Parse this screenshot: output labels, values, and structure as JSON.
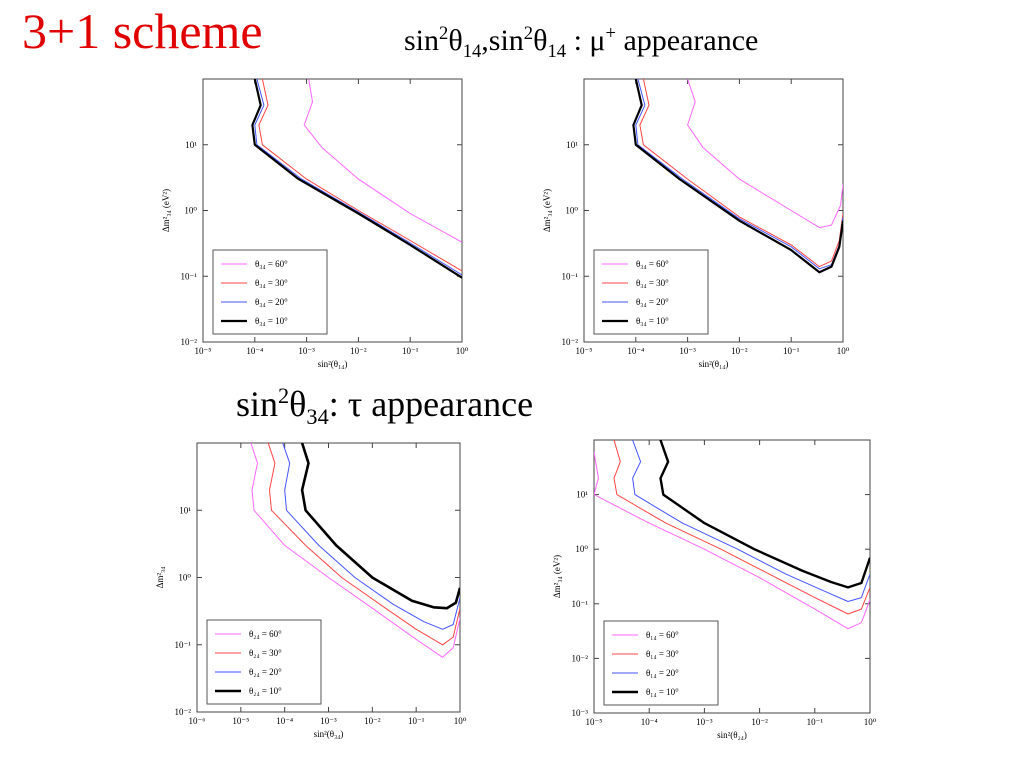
{
  "slide": {
    "title": "3+1 scheme",
    "subtitle_top": {
      "part1": "sin",
      "sup1": "2",
      "theta1": "θ",
      "sub1": "14",
      "part2": ",sin",
      "sup2": "2",
      "theta2": "θ",
      "sub2": "14",
      "part3": " : μ",
      "sup3": "+",
      "part4": " appearance"
    },
    "subtitle_mid": {
      "part1": "sin",
      "sup1": "2",
      "theta1": "θ",
      "sub1": "34",
      "part2": ": τ appearance"
    }
  },
  "colors": {
    "title": "#e00000",
    "theta_60": "#ff66ff",
    "theta_30": "#ff4444",
    "theta_20": "#4455ff",
    "theta_10": "#000000"
  },
  "chart_data": [
    {
      "type": "line",
      "xscale": "log",
      "yscale": "log",
      "xlim": [
        1e-05,
        1
      ],
      "ylim": [
        0.01,
        100
      ],
      "xlabel": "sin²(θ₁₄)",
      "ylabel": "Δm²₃₄ (eV²)",
      "xticks": [
        "10⁻⁵",
        "10⁻⁴",
        "10⁻³",
        "10⁻²",
        "10⁻¹",
        "10⁰"
      ],
      "yticks": [
        "10⁻²",
        "10⁻¹",
        "10⁰",
        "10¹"
      ],
      "legend_position": "bottom-left",
      "series": [
        {
          "name": "θ₃₄ = 60°",
          "color": "#ff66ff",
          "width": 1,
          "points": [
            [
              0.0011,
              100
            ],
            [
              0.0013,
              45
            ],
            [
              0.0009,
              20
            ],
            [
              0.002,
              9
            ],
            [
              0.01,
              3
            ],
            [
              0.1,
              0.9
            ],
            [
              1,
              0.33
            ]
          ]
        },
        {
          "name": "θ₃₄ = 30°",
          "color": "#ff4444",
          "width": 1,
          "points": [
            [
              0.00014,
              100
            ],
            [
              0.00018,
              40
            ],
            [
              0.00012,
              20
            ],
            [
              0.00014,
              10
            ],
            [
              0.001,
              3
            ],
            [
              0.01,
              1
            ],
            [
              0.1,
              0.35
            ],
            [
              1,
              0.12
            ]
          ]
        },
        {
          "name": "θ₃₄ = 20°",
          "color": "#4455ff",
          "width": 1,
          "points": [
            [
              0.00011,
              100
            ],
            [
              0.00015,
              40
            ],
            [
              0.0001,
              20
            ],
            [
              0.00011,
              10
            ],
            [
              0.0008,
              3
            ],
            [
              0.01,
              0.95
            ],
            [
              0.1,
              0.32
            ],
            [
              1,
              0.105
            ]
          ]
        },
        {
          "name": "θ₃₄ = 10°",
          "color": "#000000",
          "width": 2.2,
          "points": [
            [
              0.0001,
              100
            ],
            [
              0.00013,
              40
            ],
            [
              9e-05,
              20
            ],
            [
              0.0001,
              10
            ],
            [
              0.0007,
              3
            ],
            [
              0.01,
              0.9
            ],
            [
              0.1,
              0.3
            ],
            [
              1,
              0.095
            ]
          ]
        }
      ]
    },
    {
      "type": "line",
      "xscale": "log",
      "yscale": "log",
      "xlim": [
        1e-05,
        1
      ],
      "ylim": [
        0.01,
        100
      ],
      "xlabel": "sin²(θ₁₄)",
      "ylabel": "Δm²₃₄ (eV²)",
      "xticks": [
        "10⁻⁵",
        "10⁻⁴",
        "10⁻³",
        "10⁻²",
        "10⁻¹",
        "10⁰"
      ],
      "yticks": [
        "10⁻²",
        "10⁻¹",
        "10⁰",
        "10¹"
      ],
      "legend_position": "bottom-left",
      "series": [
        {
          "name": "θ₃₄ = 60°",
          "color": "#ff66ff",
          "width": 1,
          "points": [
            [
              0.001,
              100
            ],
            [
              0.0014,
              45
            ],
            [
              0.001,
              20
            ],
            [
              0.002,
              9
            ],
            [
              0.01,
              3
            ],
            [
              0.1,
              1
            ],
            [
              0.35,
              0.55
            ],
            [
              0.6,
              0.6
            ],
            [
              0.9,
              1.2
            ],
            [
              1,
              2.5
            ]
          ]
        },
        {
          "name": "θ₃₄ = 30°",
          "color": "#ff4444",
          "width": 1,
          "points": [
            [
              0.00014,
              100
            ],
            [
              0.00018,
              40
            ],
            [
              0.00012,
              20
            ],
            [
              0.00014,
              10
            ],
            [
              0.001,
              3
            ],
            [
              0.01,
              0.8
            ],
            [
              0.1,
              0.3
            ],
            [
              0.35,
              0.14
            ],
            [
              0.6,
              0.17
            ],
            [
              0.85,
              0.35
            ],
            [
              1,
              0.9
            ]
          ]
        },
        {
          "name": "θ₃₄ = 20°",
          "color": "#4455ff",
          "width": 1,
          "points": [
            [
              0.00011,
              100
            ],
            [
              0.00015,
              40
            ],
            [
              0.0001,
              20
            ],
            [
              0.00011,
              10
            ],
            [
              0.0008,
              3
            ],
            [
              0.01,
              0.75
            ],
            [
              0.1,
              0.28
            ],
            [
              0.35,
              0.13
            ],
            [
              0.6,
              0.15
            ],
            [
              0.85,
              0.3
            ],
            [
              1,
              0.8
            ]
          ]
        },
        {
          "name": "θ₃₄ = 10°",
          "color": "#000000",
          "width": 2.2,
          "points": [
            [
              0.0001,
              100
            ],
            [
              0.00013,
              40
            ],
            [
              9e-05,
              20
            ],
            [
              0.0001,
              10
            ],
            [
              0.0007,
              3
            ],
            [
              0.01,
              0.7
            ],
            [
              0.1,
              0.25
            ],
            [
              0.35,
              0.115
            ],
            [
              0.6,
              0.14
            ],
            [
              0.85,
              0.28
            ],
            [
              1,
              0.7
            ]
          ]
        }
      ]
    },
    {
      "type": "line",
      "xscale": "log",
      "yscale": "log",
      "xlim": [
        1e-06,
        1
      ],
      "ylim": [
        0.01,
        100
      ],
      "xlabel": "sin²(θ₃₄)",
      "ylabel": "Δm²₃₄",
      "xticks": [
        "10⁻⁶",
        "10⁻⁵",
        "10⁻⁴",
        "10⁻³",
        "10⁻²",
        "10⁻¹",
        "10⁰"
      ],
      "yticks": [
        "10⁻²",
        "10⁻¹",
        "10⁰",
        "10¹"
      ],
      "legend_position": "bottom-left",
      "series": [
        {
          "name": "θ₂₄ = 60°",
          "color": "#ff66ff",
          "width": 1,
          "points": [
            [
              1.7e-05,
              100
            ],
            [
              2.4e-05,
              50
            ],
            [
              1.8e-05,
              20
            ],
            [
              2e-05,
              10
            ],
            [
              0.0001,
              3
            ],
            [
              0.001,
              1
            ],
            [
              0.01,
              0.35
            ],
            [
              0.1,
              0.12
            ],
            [
              0.4,
              0.065
            ],
            [
              0.7,
              0.09
            ],
            [
              1,
              0.25
            ]
          ]
        },
        {
          "name": "θ₂₄ = 30°",
          "color": "#ff4444",
          "width": 1,
          "points": [
            [
              4.2e-05,
              100
            ],
            [
              6e-05,
              50
            ],
            [
              4.5e-05,
              20
            ],
            [
              5e-05,
              10
            ],
            [
              0.0003,
              3
            ],
            [
              0.002,
              1
            ],
            [
              0.02,
              0.35
            ],
            [
              0.1,
              0.17
            ],
            [
              0.4,
              0.1
            ],
            [
              0.7,
              0.13
            ],
            [
              1,
              0.35
            ]
          ]
        },
        {
          "name": "θ₂₄ = 20°",
          "color": "#4455ff",
          "width": 1,
          "points": [
            [
              9e-05,
              100
            ],
            [
              0.00013,
              50
            ],
            [
              0.0001,
              20
            ],
            [
              0.00011,
              10
            ],
            [
              0.0006,
              3
            ],
            [
              0.004,
              1
            ],
            [
              0.03,
              0.4
            ],
            [
              0.15,
              0.22
            ],
            [
              0.4,
              0.17
            ],
            [
              0.7,
              0.2
            ],
            [
              1,
              0.5
            ]
          ]
        },
        {
          "name": "θ₂₄ = 10°",
          "color": "#000000",
          "width": 2.6,
          "points": [
            [
              0.00025,
              100
            ],
            [
              0.00035,
              50
            ],
            [
              0.00025,
              20
            ],
            [
              0.0003,
              10
            ],
            [
              0.0015,
              3
            ],
            [
              0.01,
              1
            ],
            [
              0.08,
              0.45
            ],
            [
              0.25,
              0.36
            ],
            [
              0.5,
              0.35
            ],
            [
              0.8,
              0.42
            ],
            [
              1,
              0.7
            ]
          ]
        }
      ]
    },
    {
      "type": "line",
      "xscale": "log",
      "yscale": "log",
      "xlim": [
        1e-05,
        1
      ],
      "ylim": [
        0.001,
        100
      ],
      "xlabel": "sin²(θ₂₄)",
      "ylabel": "Δm²₃₄ (eV²)",
      "xticks": [
        "10⁻⁵",
        "10⁻⁴",
        "10⁻³",
        "10⁻²",
        "10⁻¹",
        "10⁰"
      ],
      "yticks": [
        "10⁻³",
        "10⁻²",
        "10⁻¹",
        "10⁰",
        "10¹"
      ],
      "legend_position": "bottom-left",
      "series": [
        {
          "name": "θ₁₄ = 60°",
          "color": "#ff66ff",
          "width": 1,
          "points": [
            [
              1e-05,
              60
            ],
            [
              1.2e-05,
              20
            ],
            [
              1e-05,
              10
            ],
            [
              0.0001,
              3
            ],
            [
              0.001,
              1
            ],
            [
              0.01,
              0.3
            ],
            [
              0.1,
              0.08
            ],
            [
              0.4,
              0.035
            ],
            [
              0.7,
              0.045
            ],
            [
              1,
              0.12
            ]
          ]
        },
        {
          "name": "θ₁₄ = 30°",
          "color": "#ff4444",
          "width": 1,
          "points": [
            [
              2.3e-05,
              100
            ],
            [
              3e-05,
              40
            ],
            [
              2.3e-05,
              20
            ],
            [
              2.6e-05,
              10
            ],
            [
              0.0002,
              3
            ],
            [
              0.002,
              1
            ],
            [
              0.02,
              0.3
            ],
            [
              0.1,
              0.13
            ],
            [
              0.4,
              0.065
            ],
            [
              0.7,
              0.08
            ],
            [
              1,
              0.2
            ]
          ]
        },
        {
          "name": "θ₁₄ = 20°",
          "color": "#4455ff",
          "width": 1,
          "points": [
            [
              5e-05,
              100
            ],
            [
              7e-05,
              40
            ],
            [
              5e-05,
              20
            ],
            [
              5.5e-05,
              10
            ],
            [
              0.0004,
              3
            ],
            [
              0.004,
              1
            ],
            [
              0.03,
              0.35
            ],
            [
              0.15,
              0.17
            ],
            [
              0.4,
              0.11
            ],
            [
              0.7,
              0.13
            ],
            [
              1,
              0.35
            ]
          ]
        },
        {
          "name": "θ₁₄ = 10°",
          "color": "#000000",
          "width": 2.4,
          "points": [
            [
              0.00016,
              100
            ],
            [
              0.00022,
              40
            ],
            [
              0.00016,
              20
            ],
            [
              0.00018,
              10
            ],
            [
              0.001,
              3
            ],
            [
              0.008,
              1
            ],
            [
              0.06,
              0.4
            ],
            [
              0.2,
              0.25
            ],
            [
              0.4,
              0.2
            ],
            [
              0.7,
              0.24
            ],
            [
              1,
              0.7
            ]
          ]
        }
      ]
    }
  ]
}
